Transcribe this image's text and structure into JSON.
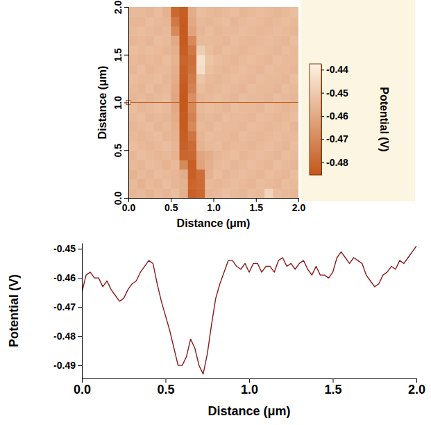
{
  "chart_data": [
    {
      "type": "heatmap",
      "xlabel": "Distance (μm)",
      "ylabel": "Distance (μm)",
      "x": [
        0.05,
        0.15,
        0.25,
        0.35,
        0.45,
        0.55,
        0.65,
        0.75,
        0.85,
        0.95,
        1.05,
        1.15,
        1.25,
        1.35,
        1.45,
        1.55,
        1.65,
        1.75,
        1.85,
        1.95
      ],
      "y": [
        0.05,
        0.15,
        0.25,
        0.35,
        0.45,
        0.55,
        0.65,
        0.75,
        0.85,
        0.95,
        1.05,
        1.15,
        1.25,
        1.35,
        1.45,
        1.55,
        1.65,
        1.75,
        1.85,
        1.95
      ],
      "z": [
        [
          -0.456,
          -0.455,
          -0.457,
          -0.455,
          -0.456,
          -0.454,
          -0.458,
          -0.482,
          -0.48,
          -0.456,
          -0.455,
          -0.453,
          -0.455,
          -0.456,
          -0.454,
          -0.455,
          -0.447,
          -0.454,
          -0.455,
          -0.456
        ],
        [
          -0.455,
          -0.457,
          -0.455,
          -0.456,
          -0.454,
          -0.456,
          -0.457,
          -0.481,
          -0.479,
          -0.455,
          -0.456,
          -0.455,
          -0.454,
          -0.455,
          -0.456,
          -0.454,
          -0.455,
          -0.456,
          -0.454,
          -0.455
        ],
        [
          -0.457,
          -0.455,
          -0.456,
          -0.454,
          -0.455,
          -0.456,
          -0.459,
          -0.482,
          -0.478,
          -0.457,
          -0.454,
          -0.456,
          -0.455,
          -0.454,
          -0.455,
          -0.456,
          -0.454,
          -0.455,
          -0.456,
          -0.454
        ],
        [
          -0.455,
          -0.456,
          -0.454,
          -0.455,
          -0.457,
          -0.455,
          -0.47,
          -0.483,
          -0.462,
          -0.458,
          -0.455,
          -0.454,
          -0.456,
          -0.455,
          -0.454,
          -0.455,
          -0.456,
          -0.454,
          -0.455,
          -0.456
        ],
        [
          -0.456,
          -0.454,
          -0.455,
          -0.456,
          -0.455,
          -0.457,
          -0.481,
          -0.48,
          -0.461,
          -0.459,
          -0.456,
          -0.455,
          -0.454,
          -0.456,
          -0.455,
          -0.454,
          -0.455,
          -0.456,
          -0.454,
          -0.455
        ],
        [
          -0.454,
          -0.455,
          -0.456,
          -0.455,
          -0.454,
          -0.456,
          -0.482,
          -0.479,
          -0.457,
          -0.455,
          -0.454,
          -0.456,
          -0.455,
          -0.455,
          -0.456,
          -0.455,
          -0.454,
          -0.455,
          -0.456,
          -0.454
        ],
        [
          -0.455,
          -0.456,
          -0.455,
          -0.454,
          -0.456,
          -0.457,
          -0.483,
          -0.476,
          -0.456,
          -0.454,
          -0.455,
          -0.455,
          -0.456,
          -0.454,
          -0.455,
          -0.456,
          -0.455,
          -0.454,
          -0.455,
          -0.455
        ],
        [
          -0.456,
          -0.455,
          -0.454,
          -0.456,
          -0.455,
          -0.458,
          -0.484,
          -0.47,
          -0.455,
          -0.456,
          -0.454,
          -0.455,
          -0.455,
          -0.456,
          -0.454,
          -0.455,
          -0.456,
          -0.455,
          -0.454,
          -0.456
        ],
        [
          -0.455,
          -0.454,
          -0.456,
          -0.455,
          -0.456,
          -0.459,
          -0.484,
          -0.472,
          -0.456,
          -0.455,
          -0.456,
          -0.454,
          -0.455,
          -0.455,
          -0.456,
          -0.454,
          -0.455,
          -0.456,
          -0.455,
          -0.454
        ],
        [
          -0.454,
          -0.456,
          -0.455,
          -0.454,
          -0.455,
          -0.46,
          -0.485,
          -0.47,
          -0.455,
          -0.454,
          -0.455,
          -0.456,
          -0.454,
          -0.455,
          -0.455,
          -0.456,
          -0.454,
          -0.455,
          -0.456,
          -0.455
        ],
        [
          -0.456,
          -0.455,
          -0.456,
          -0.455,
          -0.454,
          -0.461,
          -0.485,
          -0.468,
          -0.456,
          -0.455,
          -0.454,
          -0.455,
          -0.456,
          -0.454,
          -0.455,
          -0.455,
          -0.456,
          -0.454,
          -0.455,
          -0.456
        ],
        [
          -0.455,
          -0.456,
          -0.454,
          -0.456,
          -0.455,
          -0.46,
          -0.484,
          -0.472,
          -0.454,
          -0.456,
          -0.455,
          -0.454,
          -0.455,
          -0.456,
          -0.454,
          -0.455,
          -0.455,
          -0.456,
          -0.454,
          -0.455
        ],
        [
          -0.454,
          -0.455,
          -0.455,
          -0.454,
          -0.456,
          -0.459,
          -0.483,
          -0.474,
          -0.452,
          -0.455,
          -0.456,
          -0.455,
          -0.454,
          -0.455,
          -0.456,
          -0.454,
          -0.455,
          -0.455,
          -0.456,
          -0.454
        ],
        [
          -0.456,
          -0.454,
          -0.456,
          -0.455,
          -0.455,
          -0.458,
          -0.482,
          -0.477,
          -0.444,
          -0.453,
          -0.455,
          -0.456,
          -0.455,
          -0.454,
          -0.455,
          -0.456,
          -0.454,
          -0.455,
          -0.455,
          -0.456
        ],
        [
          -0.455,
          -0.456,
          -0.455,
          -0.456,
          -0.454,
          -0.457,
          -0.481,
          -0.478,
          -0.443,
          -0.452,
          -0.454,
          -0.455,
          -0.456,
          -0.455,
          -0.454,
          -0.455,
          -0.456,
          -0.454,
          -0.455,
          -0.455
        ],
        [
          -0.454,
          -0.455,
          -0.454,
          -0.455,
          -0.456,
          -0.458,
          -0.483,
          -0.475,
          -0.449,
          -0.454,
          -0.456,
          -0.454,
          -0.455,
          -0.456,
          -0.455,
          -0.454,
          -0.455,
          -0.456,
          -0.454,
          -0.455
        ],
        [
          -0.456,
          -0.455,
          -0.456,
          -0.454,
          -0.455,
          -0.46,
          -0.484,
          -0.47,
          -0.455,
          -0.455,
          -0.455,
          -0.456,
          -0.454,
          -0.455,
          -0.456,
          -0.455,
          -0.454,
          -0.455,
          -0.456,
          -0.454
        ],
        [
          -0.455,
          -0.454,
          -0.455,
          -0.456,
          -0.455,
          -0.47,
          -0.484,
          -0.462,
          -0.456,
          -0.454,
          -0.456,
          -0.455,
          -0.455,
          -0.454,
          -0.455,
          -0.456,
          -0.455,
          -0.454,
          -0.455,
          -0.456
        ],
        [
          -0.456,
          -0.456,
          -0.454,
          -0.455,
          -0.456,
          -0.475,
          -0.484,
          -0.46,
          -0.455,
          -0.456,
          -0.455,
          -0.454,
          -0.456,
          -0.455,
          -0.454,
          -0.455,
          -0.456,
          -0.455,
          -0.454,
          -0.455
        ],
        [
          -0.455,
          -0.455,
          -0.456,
          -0.454,
          -0.457,
          -0.48,
          -0.483,
          -0.459,
          -0.454,
          -0.455,
          -0.456,
          -0.455,
          -0.454,
          -0.456,
          -0.455,
          -0.454,
          -0.455,
          -0.456,
          -0.455,
          -0.454
        ]
      ],
      "xlim": [
        0,
        2
      ],
      "ylim": [
        0,
        2
      ],
      "xticks": [
        {
          "value": 0,
          "label": "0.0"
        },
        {
          "value": 0.5,
          "label": "0.5"
        },
        {
          "value": 1,
          "label": "1.0"
        },
        {
          "value": 1.5,
          "label": "1.5"
        },
        {
          "value": 2,
          "label": "2.0"
        }
      ],
      "yticks": [
        {
          "value": 0,
          "label": "0.0"
        },
        {
          "value": 0.5,
          "label": "0.5"
        },
        {
          "value": 1,
          "label": "1.0"
        },
        {
          "value": 1.5,
          "label": "1.5"
        },
        {
          "value": 2,
          "label": "2.0"
        }
      ],
      "colorbar_label": "Potential (V)",
      "colorbar_lim": [
        -0.4855,
        -0.4375
      ],
      "colorbar_ticks": [
        -0.48,
        -0.47,
        -0.46,
        -0.45,
        -0.44
      ],
      "colorscale": [
        "#c4561a",
        "#fdf3e3"
      ],
      "profile_y": 1
    },
    {
      "type": "line",
      "xlabel": "Distance (μm)",
      "ylabel": "Potential (V)",
      "x": [
        0,
        0.025,
        0.05,
        0.075,
        0.1,
        0.125,
        0.15,
        0.175,
        0.2,
        0.225,
        0.25,
        0.275,
        0.3,
        0.325,
        0.35,
        0.375,
        0.4,
        0.425,
        0.45,
        0.475,
        0.5,
        0.525,
        0.55,
        0.575,
        0.6,
        0.625,
        0.65,
        0.675,
        0.7,
        0.725,
        0.75,
        0.775,
        0.8,
        0.825,
        0.85,
        0.875,
        0.9,
        0.925,
        0.95,
        0.975,
        1,
        1.025,
        1.05,
        1.075,
        1.1,
        1.125,
        1.15,
        1.175,
        1.2,
        1.225,
        1.25,
        1.275,
        1.3,
        1.325,
        1.35,
        1.375,
        1.4,
        1.425,
        1.45,
        1.475,
        1.5,
        1.525,
        1.55,
        1.575,
        1.6,
        1.625,
        1.65,
        1.675,
        1.7,
        1.725,
        1.75,
        1.775,
        1.8,
        1.825,
        1.85,
        1.875,
        1.9,
        1.925,
        1.95,
        1.975,
        2
      ],
      "values": [
        -0.465,
        -0.459,
        -0.458,
        -0.46,
        -0.46,
        -0.463,
        -0.461,
        -0.464,
        -0.466,
        -0.468,
        -0.467,
        -0.464,
        -0.462,
        -0.461,
        -0.458,
        -0.456,
        -0.454,
        -0.455,
        -0.462,
        -0.468,
        -0.473,
        -0.478,
        -0.484,
        -0.49,
        -0.49,
        -0.487,
        -0.481,
        -0.484,
        -0.49,
        -0.493,
        -0.486,
        -0.476,
        -0.467,
        -0.462,
        -0.458,
        -0.454,
        -0.454,
        -0.456,
        -0.457,
        -0.455,
        -0.458,
        -0.455,
        -0.455,
        -0.458,
        -0.456,
        -0.456,
        -0.458,
        -0.454,
        -0.453,
        -0.456,
        -0.455,
        -0.457,
        -0.455,
        -0.454,
        -0.457,
        -0.459,
        -0.456,
        -0.459,
        -0.459,
        -0.46,
        -0.458,
        -0.453,
        -0.451,
        -0.453,
        -0.455,
        -0.453,
        -0.454,
        -0.455,
        -0.459,
        -0.461,
        -0.463,
        -0.462,
        -0.459,
        -0.458,
        -0.456,
        -0.457,
        -0.454,
        -0.455,
        -0.453,
        -0.451,
        -0.449
      ],
      "color": "#8b1a1a",
      "xlim": [
        0,
        2
      ],
      "ylim": [
        -0.4945,
        -0.448
      ],
      "xticks": [
        {
          "value": 0,
          "label": "0.0"
        },
        {
          "value": 0.5,
          "label": "0.5"
        },
        {
          "value": 1,
          "label": "1.0"
        },
        {
          "value": 1.5,
          "label": "1.5"
        },
        {
          "value": 2,
          "label": "2.0"
        }
      ],
      "yticks": [
        -0.49,
        -0.48,
        -0.47,
        -0.46,
        -0.45
      ],
      "grid": false
    }
  ]
}
